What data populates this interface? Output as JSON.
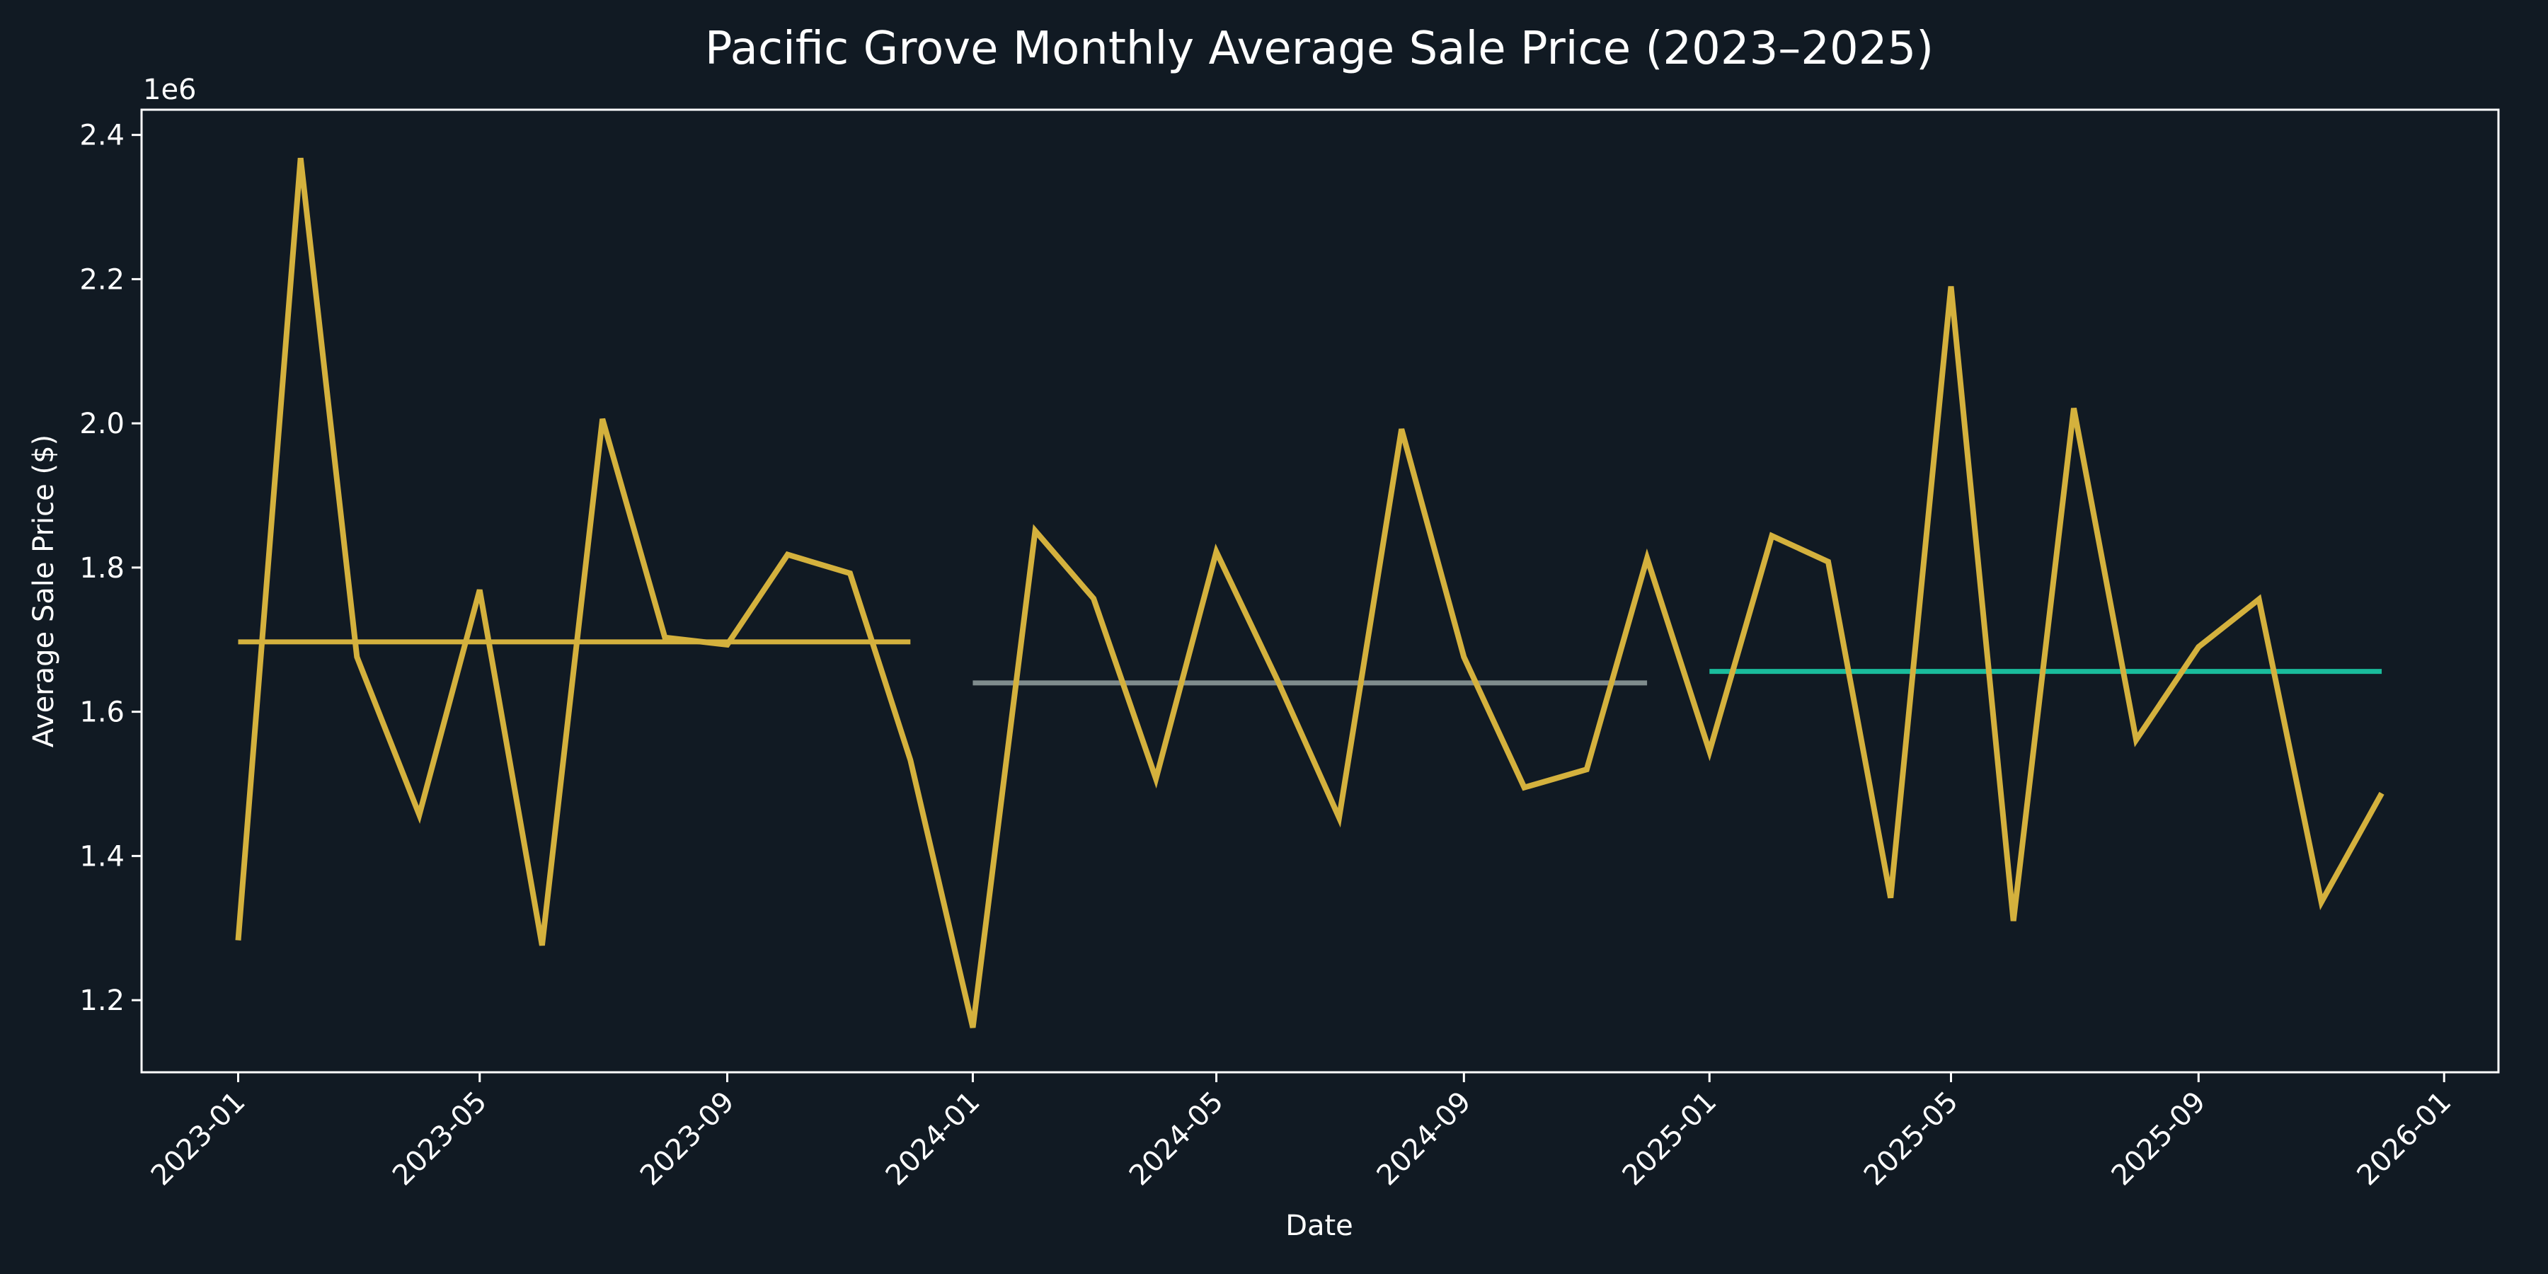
{
  "chart_data": {
    "type": "line",
    "title": "Pacific Grove Monthly Average Sale Price (2023–2025)",
    "xlabel": "Date",
    "ylabel": "Average Sale Price ($)",
    "y_offset_label": "1e6",
    "ylim": [
      1.1,
      2.435
    ],
    "y_ticks": [
      "1.2",
      "1.4",
      "1.6",
      "1.8",
      "2.0",
      "2.2",
      "2.4"
    ],
    "x_ticks": [
      "2023-01",
      "2023-05",
      "2023-09",
      "2024-01",
      "2024-05",
      "2024-09",
      "2025-01",
      "2025-05",
      "2025-09",
      "2026-01"
    ],
    "xlim": [
      "2022-11-14",
      "2026-01-28"
    ],
    "grid": false,
    "legend": "none",
    "series": [
      {
        "color": "#d4b13d",
        "x": [
          "2023-01-01",
          "2023-02-01",
          "2023-03-01",
          "2023-04-01",
          "2023-05-01",
          "2023-06-01",
          "2023-07-01",
          "2023-08-01",
          "2023-09-01",
          "2023-10-01",
          "2023-11-01",
          "2023-12-01",
          "2024-01-01",
          "2024-02-01",
          "2024-03-01",
          "2024-04-01",
          "2024-05-01",
          "2024-06-01",
          "2024-07-01",
          "2024-08-01",
          "2024-09-01",
          "2024-10-01",
          "2024-11-01",
          "2024-12-01",
          "2025-01-01",
          "2025-02-01",
          "2025-03-01",
          "2025-04-01",
          "2025-05-01",
          "2025-06-01",
          "2025-07-01",
          "2025-08-01",
          "2025-09-01",
          "2025-10-01",
          "2025-11-01",
          "2025-12-01"
        ],
        "values": [
          1.283,
          2.368,
          1.676,
          1.457,
          1.769,
          1.276,
          2.006,
          1.703,
          1.693,
          1.818,
          1.792,
          1.533,
          1.162,
          1.851,
          1.757,
          1.507,
          1.822,
          1.64,
          1.453,
          1.992,
          1.676,
          1.495,
          1.52,
          1.813,
          1.545,
          1.844,
          1.808,
          1.342,
          2.19,
          1.31,
          2.021,
          1.561,
          1.69,
          1.756,
          1.336,
          1.487
        ]
      }
    ],
    "reference_lines": [
      {
        "color": "#d4b13d",
        "x_start": "2023-01-01",
        "x_end": "2023-12-01",
        "value": 1.697
      },
      {
        "color": "#7f8c8d",
        "x_start": "2024-01-01",
        "x_end": "2024-12-01",
        "value": 1.64
      },
      {
        "color": "#1abc9c",
        "x_start": "2025-01-01",
        "x_end": "2025-12-01",
        "value": 1.656
      }
    ]
  }
}
